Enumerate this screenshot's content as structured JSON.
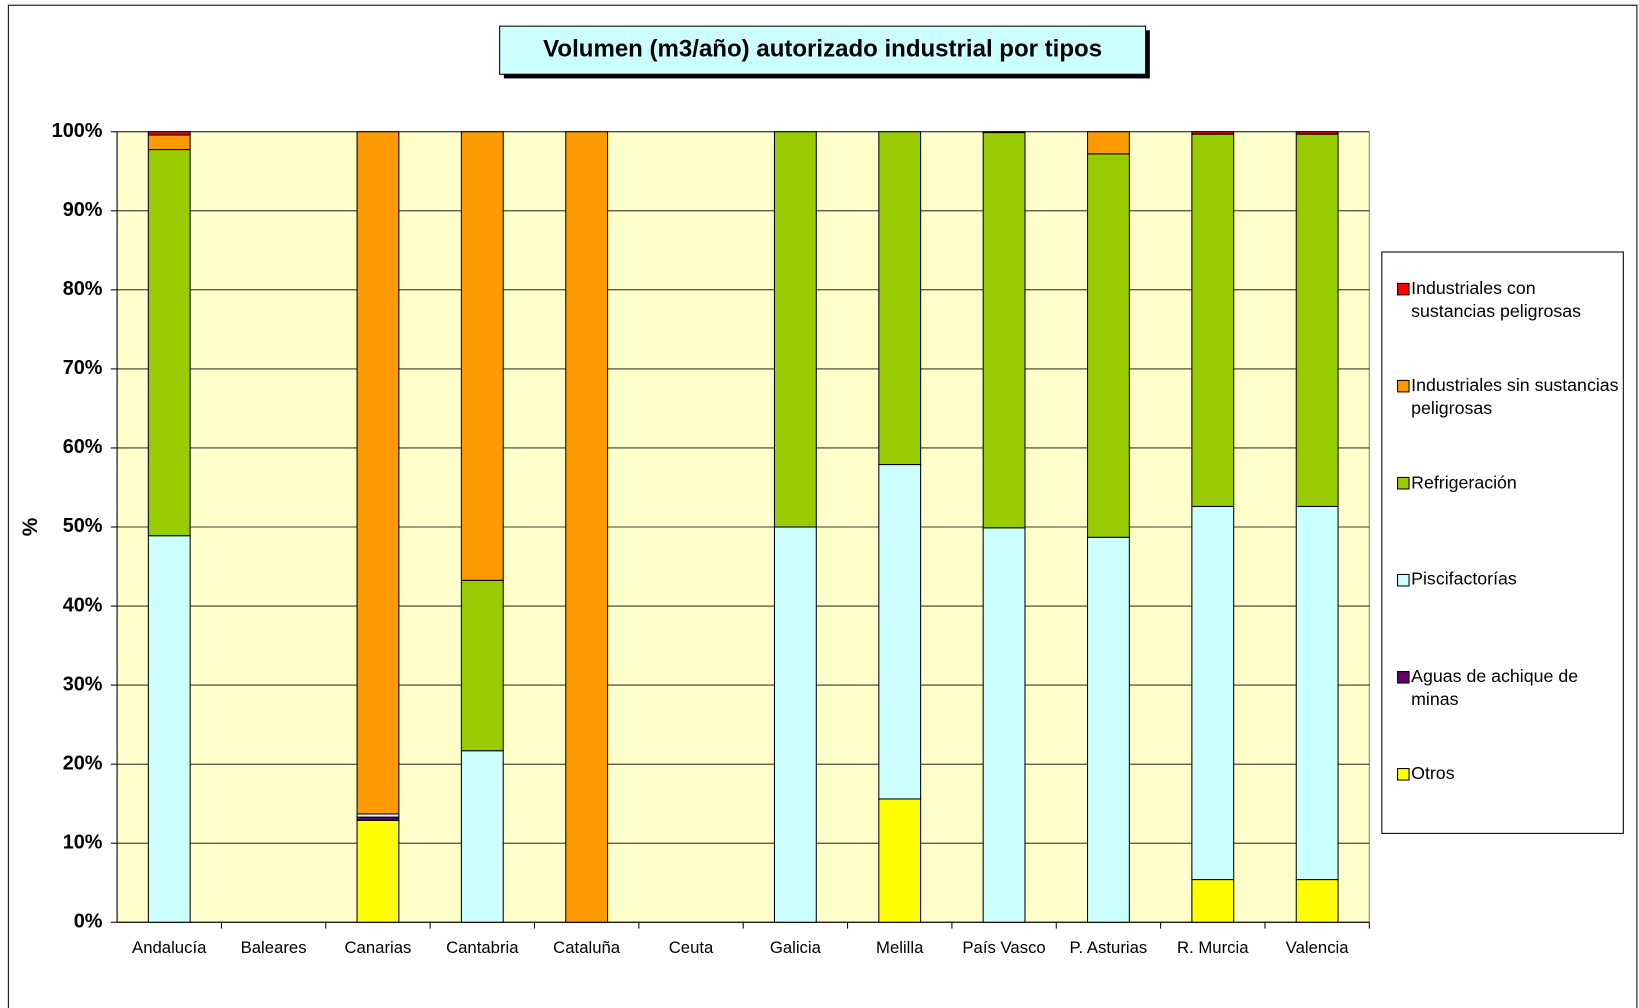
{
  "chart_data": {
    "type": "stacked_bar",
    "title": "Volumen (m3/año) autorizado industrial por tipos",
    "y_label": "%",
    "categories": [
      "Andalucía",
      "Baleares",
      "Canarias",
      "Cantabria",
      "Cataluña",
      "Ceuta",
      "Galicia",
      "Melilla",
      "País Vasco",
      "P. Asturias",
      "R. Murcia",
      "Valencia"
    ],
    "series": [
      {
        "name": "Industriales con sustancias peligrosas",
        "color": "#ff0000",
        "values": [
          0.4,
          0,
          0,
          0,
          0,
          0,
          0,
          0,
          0.1,
          0,
          0.3,
          0.3
        ]
      },
      {
        "name": "Industriales sin sustancias peligrosas",
        "color": "#ff9900",
        "values": [
          1.85,
          0,
          86.3,
          56.75,
          100,
          0,
          0,
          0,
          0,
          2.8,
          0,
          0
        ]
      },
      {
        "name": "Refrigeración",
        "color": "#99cc00",
        "values": [
          48.85,
          0,
          0,
          21.55,
          0,
          0,
          50,
          42.1,
          50,
          48.5,
          47.1,
          47.1
        ]
      },
      {
        "name": "Piscifactorías",
        "color": "#ccffff",
        "values": [
          48.9,
          0,
          0.4,
          21.7,
          0,
          0,
          50,
          42.3,
          49.9,
          48.7,
          47.2,
          47.2
        ]
      },
      {
        "name": "Aguas de achique de minas",
        "color": "#660066",
        "values": [
          0,
          0,
          0.4,
          0,
          0,
          0,
          0,
          0,
          0,
          0,
          0,
          0
        ]
      },
      {
        "name": "Otros",
        "color": "#ffff00",
        "values": [
          0,
          0,
          12.9,
          0,
          0,
          0,
          0,
          15.6,
          0,
          0,
          5.4,
          5.4
        ]
      }
    ],
    "ylim": [
      0,
      100
    ],
    "yticks": [
      {
        "value": 0,
        "label": "0%"
      },
      {
        "value": 10,
        "label": "10%"
      },
      {
        "value": 20,
        "label": "20%"
      },
      {
        "value": 30,
        "label": "30%"
      },
      {
        "value": 40,
        "label": "40%"
      },
      {
        "value": 50,
        "label": "50%"
      },
      {
        "value": 60,
        "label": "60%"
      },
      {
        "value": 70,
        "label": "70%"
      },
      {
        "value": 80,
        "label": "80%"
      },
      {
        "value": 90,
        "label": "90%"
      },
      {
        "value": 100,
        "label": "100%"
      }
    ],
    "grid": true,
    "legend": "right",
    "plot_background": "#ffffcc"
  }
}
